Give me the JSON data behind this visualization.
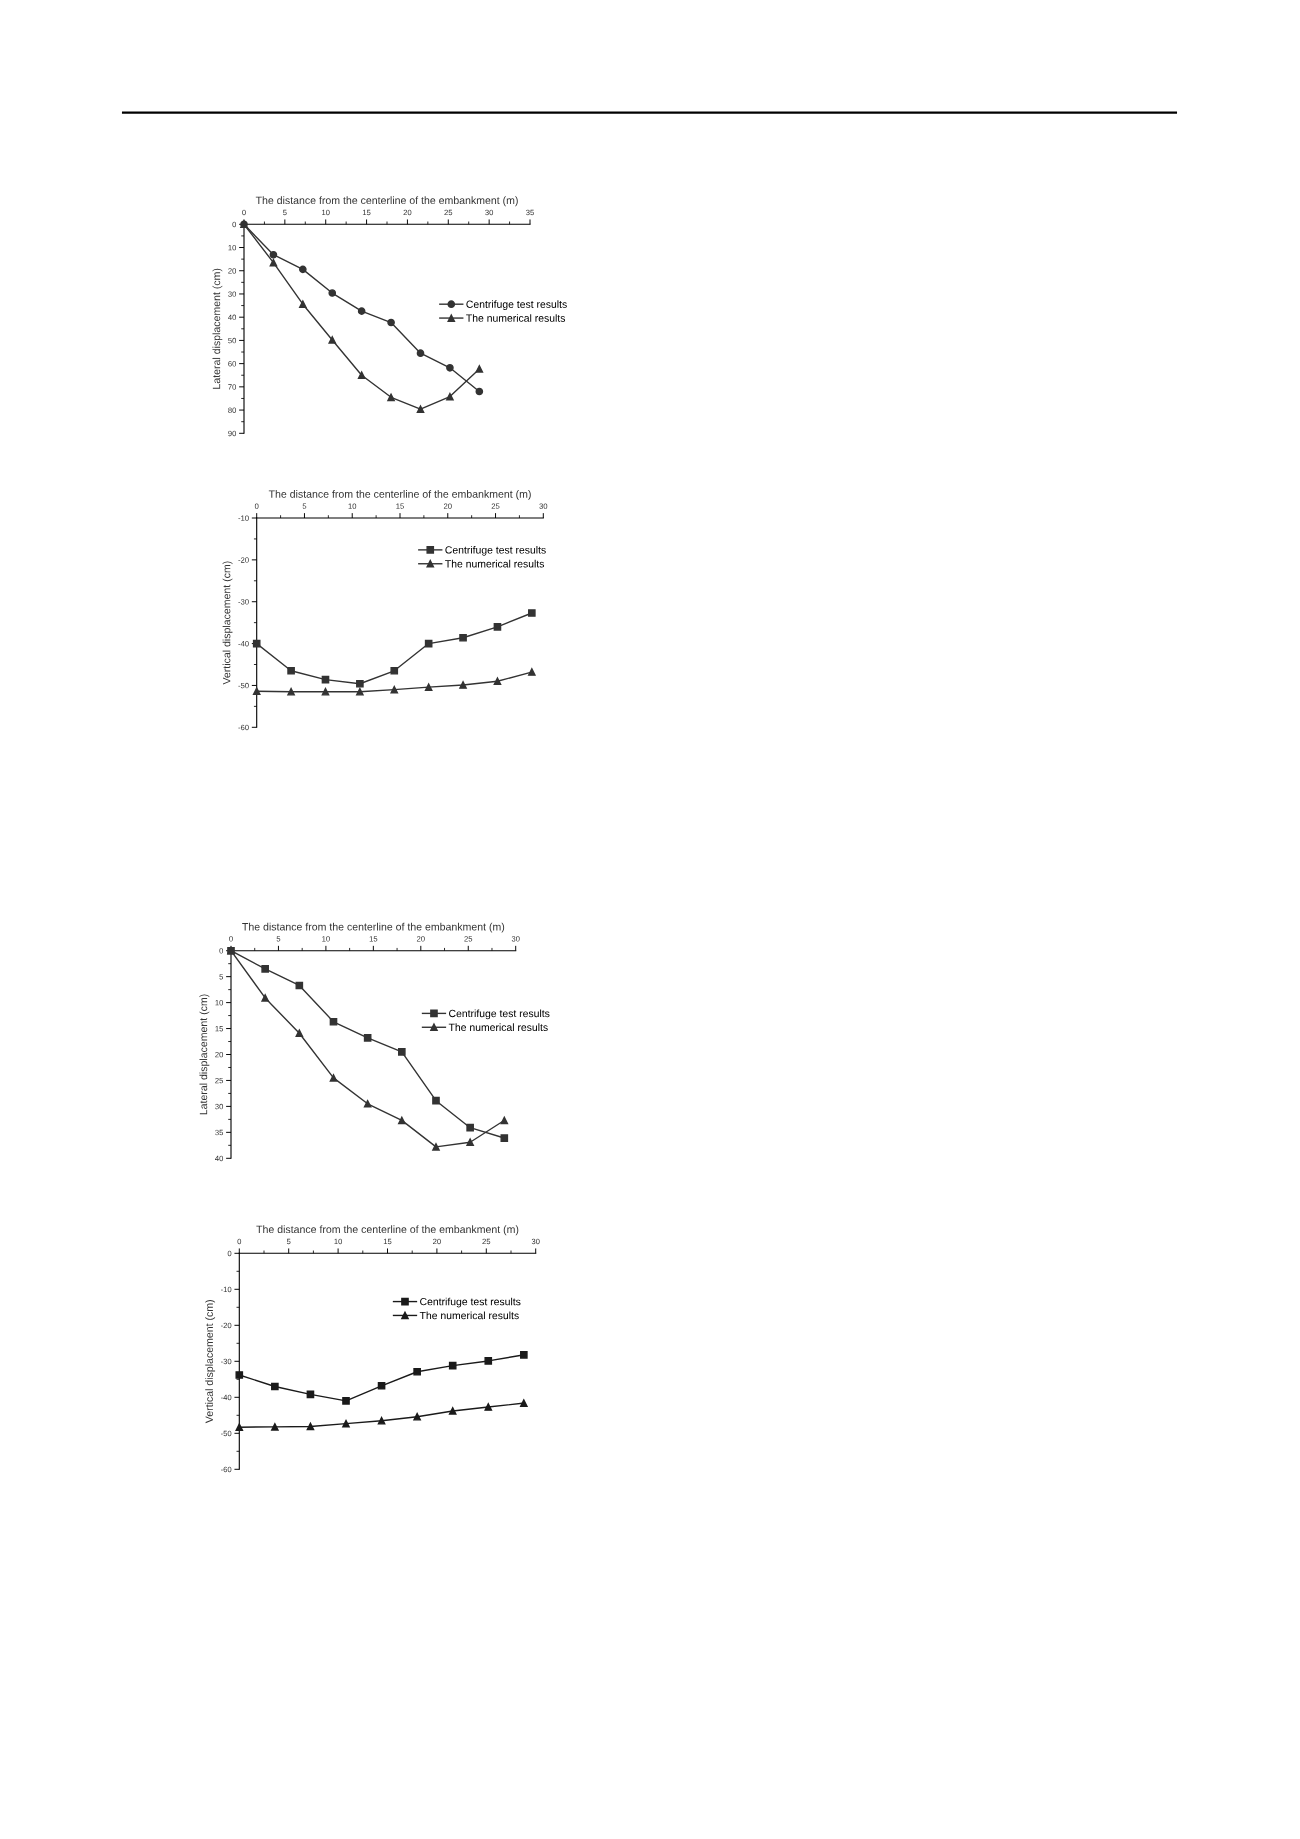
{
  "chart_data": [
    {
      "type": "line",
      "xlabel": "The distance from the centerline of the embankment (m)",
      "ylabel": "Lateral displacement (cm)",
      "xlim": [
        0,
        35
      ],
      "xticks": [
        0,
        5,
        10,
        15,
        20,
        25,
        30,
        35
      ],
      "ylim": [
        90,
        0
      ],
      "yticks": [
        0,
        10,
        20,
        30,
        40,
        50,
        60,
        70,
        80,
        90
      ],
      "legend": "right",
      "x": [
        0,
        3.6,
        7.2,
        10.8,
        14.4,
        18,
        21.6,
        25.2,
        28.8
      ],
      "series": [
        {
          "name": "Centrifuge test results",
          "color": "#333333",
          "marker": "circle",
          "values": [
            0,
            13.1,
            19.4,
            29.6,
            37.4,
            42.3,
            55.5,
            61.8,
            72.0
          ]
        },
        {
          "name": "The numerical results",
          "color": "#333333",
          "marker": "triangle",
          "values": [
            0,
            16.5,
            34.4,
            49.8,
            65.0,
            74.5,
            79.6,
            74.2,
            62.3
          ]
        }
      ]
    },
    {
      "type": "line",
      "xlabel": "The distance from the centerline of the embankment (m)",
      "ylabel": "Vertical displacement (cm)",
      "xlim": [
        0,
        30
      ],
      "xticks": [
        0,
        5,
        10,
        15,
        20,
        25,
        30
      ],
      "ylim": [
        -60,
        -10
      ],
      "yticks": [
        -60,
        -50,
        -40,
        -30,
        -20,
        -10
      ],
      "legend": "right",
      "x": [
        0,
        3.6,
        7.2,
        10.8,
        14.4,
        18,
        21.6,
        25.2,
        28.8
      ],
      "series": [
        {
          "name": "Centrifuge test results",
          "color": "#333333",
          "marker": "square",
          "values": [
            -40.0,
            -46.5,
            -48.6,
            -49.6,
            -46.5,
            -40.0,
            -38.6,
            -36.0,
            -32.7
          ]
        },
        {
          "name": "The numerical results",
          "color": "#333333",
          "marker": "triangle",
          "values": [
            -51.4,
            -51.5,
            -51.5,
            -51.5,
            -51.0,
            -50.4,
            -49.9,
            -49.0,
            -46.8
          ]
        }
      ]
    },
    {
      "type": "line",
      "xlabel": "The distance from the centerline of the embankment (m)",
      "ylabel": "Lateral displacement (cm)",
      "xlim": [
        0,
        30
      ],
      "xticks": [
        0,
        5,
        10,
        15,
        20,
        25,
        30
      ],
      "ylim": [
        40,
        0
      ],
      "yticks": [
        0,
        5,
        10,
        15,
        20,
        25,
        30,
        35,
        40
      ],
      "legend": "right",
      "x": [
        0,
        3.6,
        7.2,
        10.8,
        14.4,
        18,
        21.6,
        25.2,
        28.8
      ],
      "series": [
        {
          "name": "Centrifuge test results",
          "color": "#333333",
          "marker": "square",
          "values": [
            0,
            3.5,
            6.7,
            13.7,
            16.8,
            19.5,
            28.9,
            34.1,
            36.1
          ]
        },
        {
          "name": "The numerical results",
          "color": "#333333",
          "marker": "triangle",
          "values": [
            0,
            9.1,
            15.9,
            24.5,
            29.5,
            32.7,
            37.8,
            36.9,
            32.7
          ]
        }
      ]
    },
    {
      "type": "line",
      "xlabel": "The distance from the centerline of the embankment (m)",
      "ylabel": "Vertical displacement (cm)",
      "xlim": [
        0,
        30
      ],
      "xticks": [
        0,
        5,
        10,
        15,
        20,
        25,
        30
      ],
      "ylim": [
        -60,
        0
      ],
      "yticks": [
        -60,
        -50,
        -40,
        -30,
        -20,
        -10,
        0
      ],
      "legend": "right",
      "x": [
        0,
        3.6,
        7.2,
        10.8,
        14.4,
        18,
        21.6,
        25.2,
        28.8
      ],
      "series": [
        {
          "name": "Centrifuge test results",
          "color": "#1a1a1a",
          "marker": "square",
          "values": [
            -33.8,
            -37.0,
            -39.2,
            -41.0,
            -36.8,
            -32.9,
            -31.2,
            -29.9,
            -28.2
          ]
        },
        {
          "name": "The numerical results",
          "color": "#1a1a1a",
          "marker": "triangle",
          "values": [
            -48.3,
            -48.2,
            -48.1,
            -47.3,
            -46.5,
            -45.4,
            -43.8,
            -42.7,
            -41.6
          ]
        }
      ]
    }
  ]
}
